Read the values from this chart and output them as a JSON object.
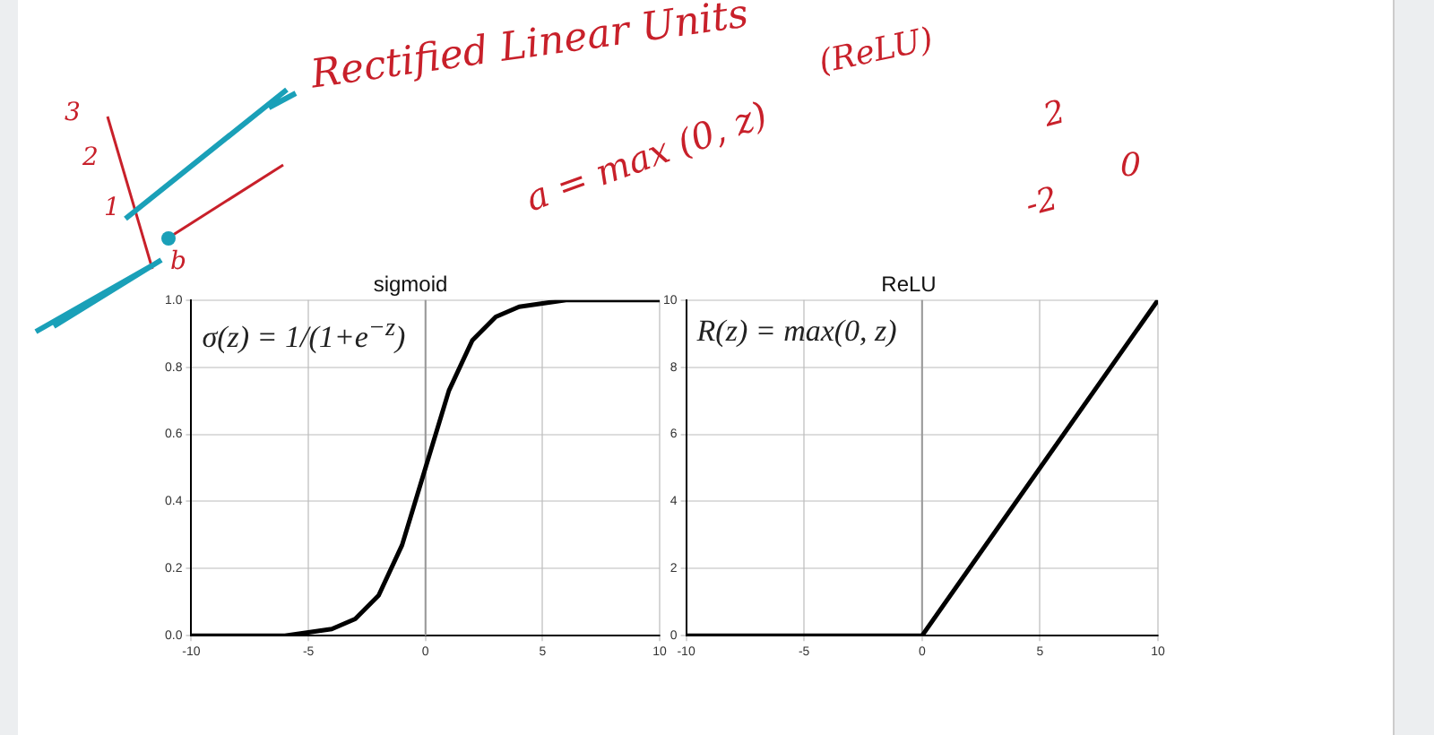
{
  "chart_data": [
    {
      "type": "line",
      "title": "sigmoid",
      "x": [
        -10,
        -8,
        -6,
        -5,
        -4,
        -3,
        -2,
        -1,
        0,
        1,
        2,
        3,
        4,
        5,
        6,
        8,
        10
      ],
      "values": [
        0,
        0,
        0,
        0.01,
        0.02,
        0.05,
        0.12,
        0.27,
        0.5,
        0.73,
        0.88,
        0.95,
        0.98,
        0.99,
        1,
        1,
        1
      ],
      "color": "#000000",
      "marker": "none",
      "grid": true,
      "xlim": [
        -10,
        10
      ],
      "xticks": [
        -10,
        -5,
        0,
        5,
        10
      ],
      "ylim": [
        0,
        1
      ],
      "yticks": [
        {
          "value": 0,
          "label": "0.0"
        },
        {
          "value": 0.2,
          "label": "0.2"
        },
        {
          "value": 0.4,
          "label": "0.4"
        },
        {
          "value": 0.6,
          "label": "0.6"
        },
        {
          "value": 0.8,
          "label": "0.8"
        },
        {
          "value": 1,
          "label": "1.0"
        }
      ],
      "ref_lines": [
        {
          "axis": "x",
          "value": 0,
          "color": "#999999"
        }
      ],
      "annotations": [
        "σ(z) = 1/(1+e$^{−z}$)"
      ]
    },
    {
      "type": "line",
      "title": "ReLU",
      "x": [
        -10,
        0,
        10
      ],
      "values": [
        0,
        0,
        10
      ],
      "color": "#000000",
      "marker": "none",
      "grid": true,
      "xlim": [
        -10,
        10
      ],
      "xticks": [
        -10,
        -5,
        0,
        5,
        10
      ],
      "ylim": [
        0,
        10
      ],
      "yticks": [
        0,
        2,
        4,
        6,
        8,
        10
      ],
      "ref_lines": [
        {
          "axis": "x",
          "value": 0,
          "color": "#999999"
        }
      ],
      "annotations": [
        "R(z) = max(0,  z)",
        "Rectified Linear Units",
        "(ReLU)",
        "a = max (0, z)",
        "2",
        "-2",
        "0",
        "3",
        "2",
        "1",
        "b"
      ]
    }
  ]
}
